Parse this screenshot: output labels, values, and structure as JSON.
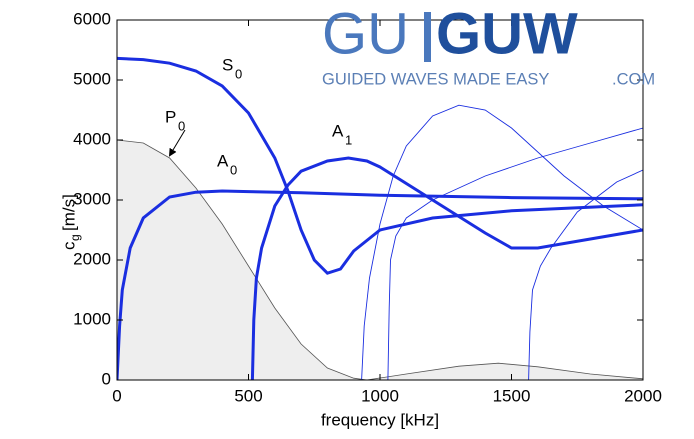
{
  "chart_data": {
    "type": "line",
    "xlabel": "frequency [kHz]",
    "ylabel": {
      "symbol": "c",
      "subscript": "g",
      "unit": "[m/s]"
    },
    "xlim": [
      0,
      2000
    ],
    "xticks": [
      0,
      500,
      1000,
      1500,
      2000
    ],
    "ylim": [
      0,
      6000
    ],
    "yticks": [
      0,
      1000,
      2000,
      3000,
      4000,
      5000,
      6000
    ],
    "series": [
      {
        "color": "#555555",
        "fill": "#eeeeee",
        "width": 0.8,
        "x": [
          0,
          100,
          200,
          300,
          400,
          500,
          600,
          700,
          800,
          900,
          950,
          1100,
          1300,
          1450,
          1600,
          1800,
          2000
        ],
        "values": [
          4000,
          3950,
          3700,
          3200,
          2600,
          1900,
          1200,
          600,
          200,
          30,
          0,
          100,
          230,
          280,
          220,
          100,
          20
        ]
      },
      {
        "color": "#1a2ee0",
        "width": 3,
        "x": [
          0,
          100,
          200,
          300,
          400,
          500,
          600,
          650,
          700,
          750,
          800,
          850,
          900,
          1000,
          1200,
          1500,
          2000
        ],
        "values": [
          5360,
          5340,
          5280,
          5150,
          4900,
          4450,
          3700,
          3150,
          2500,
          2000,
          1780,
          1850,
          2150,
          2500,
          2700,
          2820,
          2920
        ]
      },
      {
        "color": "#1a2ee0",
        "width": 3,
        "x": [
          0,
          10,
          20,
          50,
          100,
          200,
          300,
          400,
          500,
          700,
          1000,
          1500,
          2000
        ],
        "values": [
          0,
          900,
          1500,
          2200,
          2700,
          3050,
          3130,
          3150,
          3140,
          3120,
          3080,
          3040,
          3020
        ]
      },
      {
        "color": "#1a2ee0",
        "width": 3,
        "x": [
          515,
          520,
          530,
          550,
          600,
          650,
          700,
          800,
          880,
          950,
          1000,
          1200,
          1400,
          1500,
          1600,
          1800,
          2000
        ],
        "values": [
          0,
          1000,
          1700,
          2200,
          2900,
          3250,
          3480,
          3650,
          3700,
          3650,
          3550,
          3000,
          2450,
          2200,
          2200,
          2350,
          2500
        ]
      },
      {
        "color": "#1a2ee0",
        "width": 0.9,
        "x": [
          930,
          940,
          960,
          1000,
          1050,
          1100,
          1200,
          1300,
          1400,
          1500,
          1700,
          1850,
          2000
        ],
        "values": [
          0,
          900,
          1700,
          2600,
          3400,
          3900,
          4400,
          4580,
          4500,
          4200,
          3400,
          2900,
          2500
        ]
      },
      {
        "color": "#1a2ee0",
        "width": 0.9,
        "x": [
          1030,
          1035,
          1040,
          1060,
          1100,
          1200,
          1400,
          1600,
          1800,
          2000
        ],
        "values": [
          0,
          1200,
          2000,
          2400,
          2700,
          3000,
          3400,
          3700,
          3950,
          4200
        ]
      },
      {
        "color": "#1a2ee0",
        "width": 0.9,
        "x": [
          1565,
          1570,
          1580,
          1610,
          1650,
          1750,
          1900,
          2000
        ],
        "values": [
          0,
          800,
          1500,
          1900,
          2200,
          2800,
          3300,
          3500
        ]
      }
    ],
    "annotations": [
      {
        "text": "S",
        "subscript": "0"
      },
      {
        "text": "A",
        "subscript": "0"
      },
      {
        "text": "A",
        "subscript": "1"
      },
      {
        "text": "P",
        "subscript": "0"
      }
    ],
    "logo": {
      "left": "GU",
      "right": "GUW",
      "tagline": "GUIDED WAVES MADE EASY",
      "domain": ".COM"
    }
  }
}
